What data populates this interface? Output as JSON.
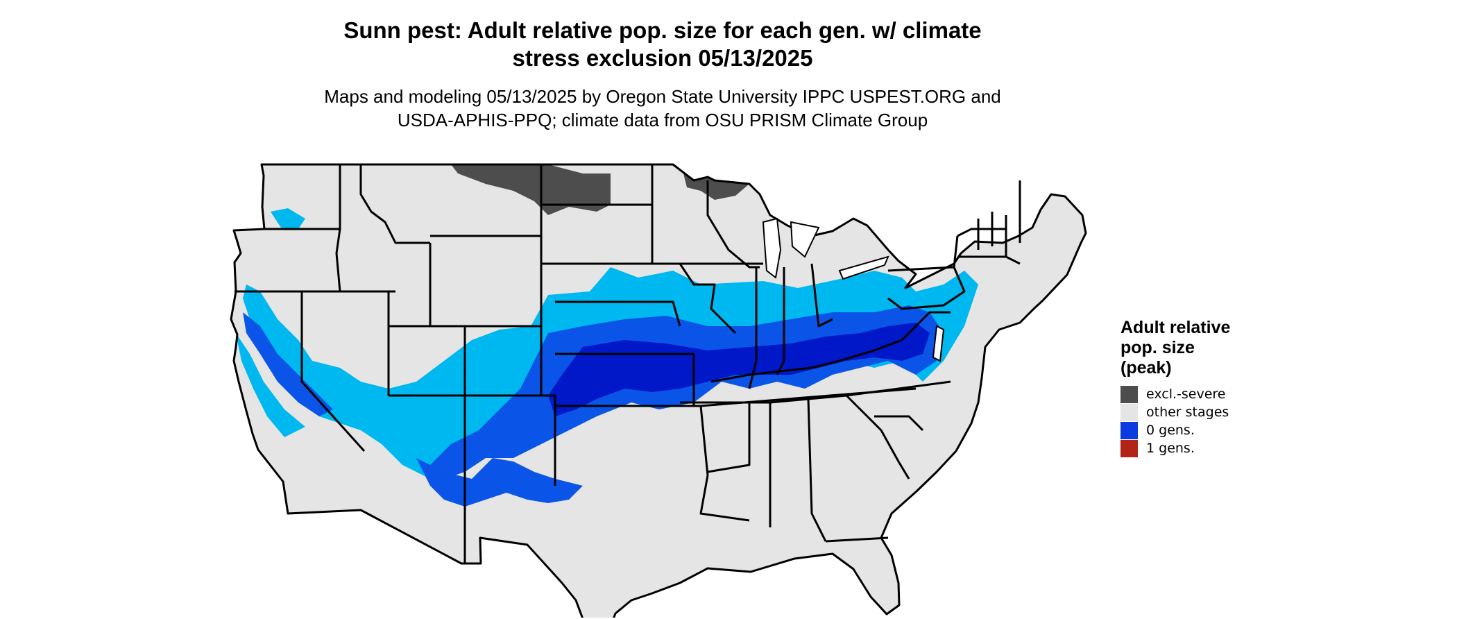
{
  "title": {
    "line1": "Sunn pest: Adult relative pop. size for each gen. w/ climate",
    "line2": "stress exclusion 05/13/2025"
  },
  "subtitle": {
    "line1": "Maps and modeling 05/13/2025 by Oregon State University IPPC USPEST.ORG and",
    "line2": "USDA-APHIS-PPQ; climate data from OSU PRISM Climate Group"
  },
  "legend": {
    "title_lines": [
      "Adult relative",
      "pop. size",
      "(peak)"
    ],
    "items": [
      {
        "label": "excl.-severe",
        "color": "#4d4d4d"
      },
      {
        "label": "other stages",
        "color": "#e5e5e5"
      },
      {
        "label": "0 gens.",
        "color": "#0a3be0"
      },
      {
        "label": "1 gens.",
        "color": "#b22418"
      }
    ]
  },
  "colors": {
    "land": "#e5e5e5",
    "border": "#000000",
    "excl_severe": "#4d4d4d",
    "light_blue": "#00b8f0",
    "mid_blue": "#0a55e8",
    "dark_blue": "#0018c8"
  }
}
